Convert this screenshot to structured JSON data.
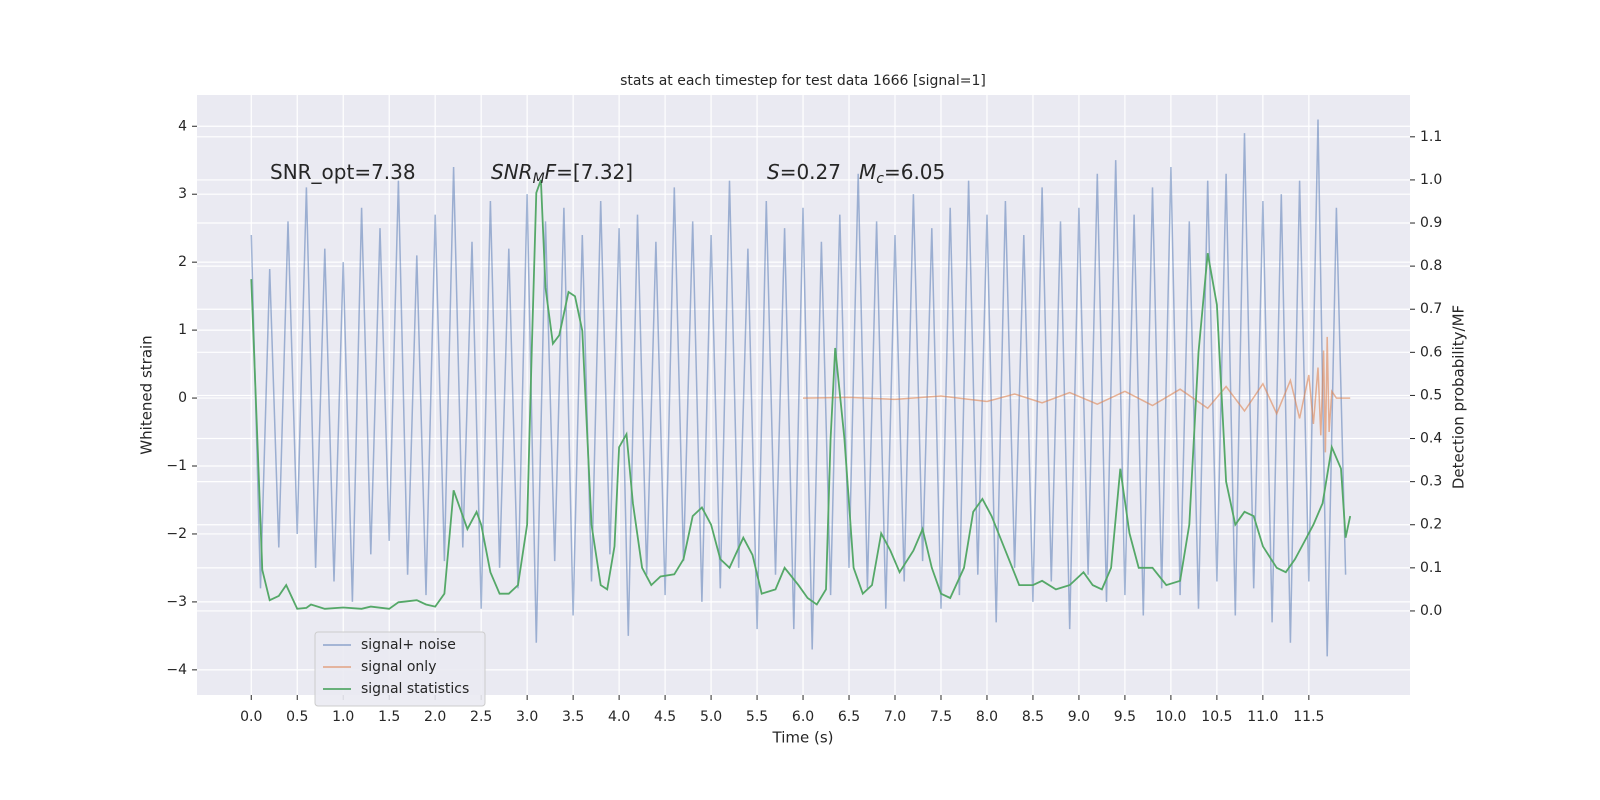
{
  "chart_data": {
    "type": "line",
    "title": "stats at each timestep for test data 1666 [signal=1]",
    "xlabel": "Time (s)",
    "ylabel": "Whitened strain",
    "y2label": "Detection probability/MF",
    "annotations": [
      [
        "SNR_opt=7.38"
      ],
      [
        "SNR",
        "M",
        "F",
        "=[7.32]"
      ],
      [
        "S",
        "=0.27"
      ],
      [
        "M",
        "c",
        "=6.05"
      ]
    ],
    "xlim": [
      -0.59,
      12.6
    ],
    "ylim": [
      -4.37,
      4.46
    ],
    "y2lim": [
      -0.195,
      1.197
    ],
    "xticks": [
      {
        "value": 0,
        "label": "0.0"
      },
      0.5,
      {
        "value": 1,
        "label": "1.0"
      },
      1.5,
      {
        "value": 2,
        "label": "2.0"
      },
      2.5,
      {
        "value": 3,
        "label": "3.0"
      },
      3.5,
      {
        "value": 4,
        "label": "4.0"
      },
      4.5,
      {
        "value": 5,
        "label": "5.0"
      },
      5.5,
      {
        "value": 6,
        "label": "6.0"
      },
      6.5,
      {
        "value": 7,
        "label": "7.0"
      },
      7.5,
      {
        "value": 8,
        "label": "8.0"
      },
      8.5,
      {
        "value": 9,
        "label": "9.0"
      },
      9.5,
      {
        "value": 10,
        "label": "10.0"
      },
      10.5,
      {
        "value": 11,
        "label": "11.0"
      },
      11.5
    ],
    "yticks": [
      {
        "value": -4,
        "label": "−4"
      },
      {
        "value": -3,
        "label": "−3"
      },
      {
        "value": -2,
        "label": "−2"
      },
      {
        "value": -1,
        "label": "−1"
      },
      0,
      1,
      2,
      3,
      4
    ],
    "y2ticks": [
      {
        "value": 0,
        "label": "0.0"
      },
      0.1,
      0.2,
      0.3,
      0.4,
      0.5,
      0.6,
      0.7,
      0.8,
      0.9,
      {
        "value": 1,
        "label": "1.0"
      },
      1.1
    ],
    "grid": true,
    "legend": "lower left",
    "series": [
      {
        "name": "signal+ noise",
        "color": "#4c72b0",
        "opacity": 0.5,
        "x": [
          0,
          0.1,
          0.2,
          0.3,
          0.4,
          0.5,
          0.6,
          0.7,
          0.8,
          0.9,
          1,
          1.1,
          1.2,
          1.3,
          1.4,
          1.5,
          1.6,
          1.7,
          1.8,
          1.9,
          2,
          2.1,
          2.2,
          2.3,
          2.4,
          2.5,
          2.6,
          2.7,
          2.8,
          2.9,
          3,
          3.1,
          3.2,
          3.3,
          3.4,
          3.5,
          3.6,
          3.7,
          3.8,
          3.9,
          4,
          4.1,
          4.2,
          4.3,
          4.4,
          4.5,
          4.6,
          4.7,
          4.8,
          4.9,
          5,
          5.1,
          5.2,
          5.3,
          5.4,
          5.5,
          5.6,
          5.7,
          5.8,
          5.9,
          6,
          6.1,
          6.2,
          6.3,
          6.4,
          6.5,
          6.6,
          6.7,
          6.8,
          6.9,
          7,
          7.1,
          7.2,
          7.3,
          7.4,
          7.5,
          7.6,
          7.7,
          7.8,
          7.9,
          8,
          8.1,
          8.2,
          8.3,
          8.4,
          8.5,
          8.6,
          8.7,
          8.8,
          8.9,
          9,
          9.1,
          9.2,
          9.3,
          9.4,
          9.5,
          9.6,
          9.7,
          9.8,
          9.9,
          10,
          10.1,
          10.2,
          10.3,
          10.4,
          10.5,
          10.6,
          10.7,
          10.8,
          10.9,
          11,
          11.1,
          11.2,
          11.3,
          11.4,
          11.5,
          11.6,
          11.7,
          11.8,
          11.9
        ],
        "values": [
          2.4,
          -2.8,
          1.9,
          -2.2,
          2.6,
          -2.0,
          3.1,
          -2.5,
          2.2,
          -2.7,
          2.0,
          -3.0,
          2.8,
          -2.3,
          2.5,
          -2.1,
          3.2,
          -2.6,
          2.1,
          -2.9,
          2.7,
          -2.4,
          3.4,
          -2.2,
          2.3,
          -3.1,
          2.9,
          -2.5,
          2.2,
          -2.8,
          3.0,
          -3.6,
          2.6,
          -2.4,
          2.8,
          -3.2,
          2.4,
          -2.7,
          2.9,
          -2.3,
          2.5,
          -3.5,
          2.7,
          -2.6,
          2.3,
          -2.9,
          3.1,
          -2.4,
          2.6,
          -3.0,
          2.4,
          -2.8,
          3.2,
          -2.5,
          2.2,
          -3.4,
          2.9,
          -2.6,
          2.5,
          -3.4,
          2.8,
          -3.7,
          2.3,
          -2.9,
          2.7,
          -2.5,
          3.3,
          -2.8,
          2.6,
          -3.1,
          2.4,
          -2.7,
          3.0,
          -2.4,
          2.5,
          -3.1,
          2.8,
          -2.9,
          3.2,
          -2.6,
          2.7,
          -3.3,
          2.9,
          -2.5,
          2.4,
          -3.0,
          3.1,
          -2.7,
          2.6,
          -3.4,
          2.8,
          -2.6,
          3.3,
          -3.0,
          3.5,
          -2.9,
          2.7,
          -3.2,
          3.1,
          -2.8,
          3.4,
          -2.9,
          2.6,
          -3.1,
          3.2,
          -2.7,
          3.3,
          -3.2,
          3.9,
          -2.8,
          2.9,
          -3.3,
          3.0,
          -3.6,
          3.2,
          -2.7,
          4.1,
          -3.8,
          2.8,
          -2.6
        ]
      },
      {
        "name": "signal only",
        "color": "#dd8452",
        "opacity": 0.6,
        "x": [
          6.0,
          6.5,
          7.0,
          7.5,
          8.0,
          8.3,
          8.6,
          8.9,
          9.2,
          9.5,
          9.8,
          10.1,
          10.4,
          10.6,
          10.8,
          11.0,
          11.15,
          11.3,
          11.4,
          11.5,
          11.55,
          11.6,
          11.63,
          11.66,
          11.68,
          11.7,
          11.72,
          11.75,
          11.8,
          11.95
        ],
        "values": [
          0,
          0.01,
          -0.02,
          0.03,
          -0.05,
          0.06,
          -0.07,
          0.08,
          -0.09,
          0.1,
          -0.11,
          0.13,
          -0.15,
          0.17,
          -0.19,
          0.21,
          -0.23,
          0.26,
          -0.3,
          0.34,
          -0.38,
          0.45,
          -0.55,
          0.7,
          -0.8,
          0.9,
          -0.5,
          0.1,
          0,
          0
        ]
      },
      {
        "name": "signal statistics",
        "color": "#55a868",
        "opacity": 1,
        "axis": "y2",
        "x": [
          0,
          0.12,
          0.2,
          0.3,
          0.38,
          0.5,
          0.6,
          0.65,
          0.8,
          1.0,
          1.2,
          1.3,
          1.5,
          1.6,
          1.8,
          1.9,
          2.0,
          2.1,
          2.2,
          2.3,
          2.35,
          2.45,
          2.5,
          2.6,
          2.7,
          2.8,
          2.9,
          3.0,
          3.05,
          3.1,
          3.15,
          3.2,
          3.28,
          3.35,
          3.45,
          3.52,
          3.6,
          3.7,
          3.8,
          3.87,
          3.95,
          4.0,
          4.08,
          4.15,
          4.25,
          4.35,
          4.45,
          4.6,
          4.7,
          4.8,
          4.9,
          5.0,
          5.1,
          5.2,
          5.35,
          5.45,
          5.55,
          5.7,
          5.8,
          5.95,
          6.05,
          6.15,
          6.25,
          6.3,
          6.35,
          6.45,
          6.55,
          6.65,
          6.75,
          6.85,
          6.95,
          7.05,
          7.2,
          7.3,
          7.4,
          7.5,
          7.6,
          7.75,
          7.85,
          7.95,
          8.05,
          8.2,
          8.35,
          8.5,
          8.6,
          8.75,
          8.9,
          9.05,
          9.15,
          9.25,
          9.35,
          9.45,
          9.55,
          9.65,
          9.8,
          9.95,
          10.1,
          10.2,
          10.3,
          10.4,
          10.5,
          10.6,
          10.7,
          10.8,
          10.9,
          11.0,
          11.15,
          11.25,
          11.35,
          11.45,
          11.55,
          11.65,
          11.75,
          11.85,
          11.9,
          11.95
        ],
        "values": [
          0.77,
          0.095,
          0.025,
          0.035,
          0.06,
          0.005,
          0.007,
          0.015,
          0.005,
          0.008,
          0.005,
          0.01,
          0.005,
          0.02,
          0.025,
          0.015,
          0.01,
          0.04,
          0.28,
          0.22,
          0.19,
          0.23,
          0.2,
          0.09,
          0.04,
          0.04,
          0.06,
          0.2,
          0.6,
          0.97,
          1.0,
          0.75,
          0.62,
          0.64,
          0.74,
          0.73,
          0.65,
          0.2,
          0.06,
          0.05,
          0.15,
          0.38,
          0.41,
          0.25,
          0.1,
          0.06,
          0.08,
          0.085,
          0.12,
          0.22,
          0.24,
          0.2,
          0.12,
          0.1,
          0.17,
          0.13,
          0.04,
          0.05,
          0.1,
          0.06,
          0.03,
          0.015,
          0.05,
          0.4,
          0.61,
          0.4,
          0.1,
          0.04,
          0.06,
          0.18,
          0.14,
          0.09,
          0.14,
          0.19,
          0.1,
          0.04,
          0.03,
          0.1,
          0.23,
          0.26,
          0.22,
          0.14,
          0.06,
          0.06,
          0.07,
          0.05,
          0.06,
          0.09,
          0.06,
          0.05,
          0.1,
          0.33,
          0.18,
          0.1,
          0.1,
          0.06,
          0.07,
          0.2,
          0.6,
          0.83,
          0.71,
          0.3,
          0.2,
          0.23,
          0.22,
          0.15,
          0.1,
          0.09,
          0.12,
          0.16,
          0.2,
          0.25,
          0.38,
          0.33,
          0.17,
          0.22
        ]
      }
    ]
  }
}
